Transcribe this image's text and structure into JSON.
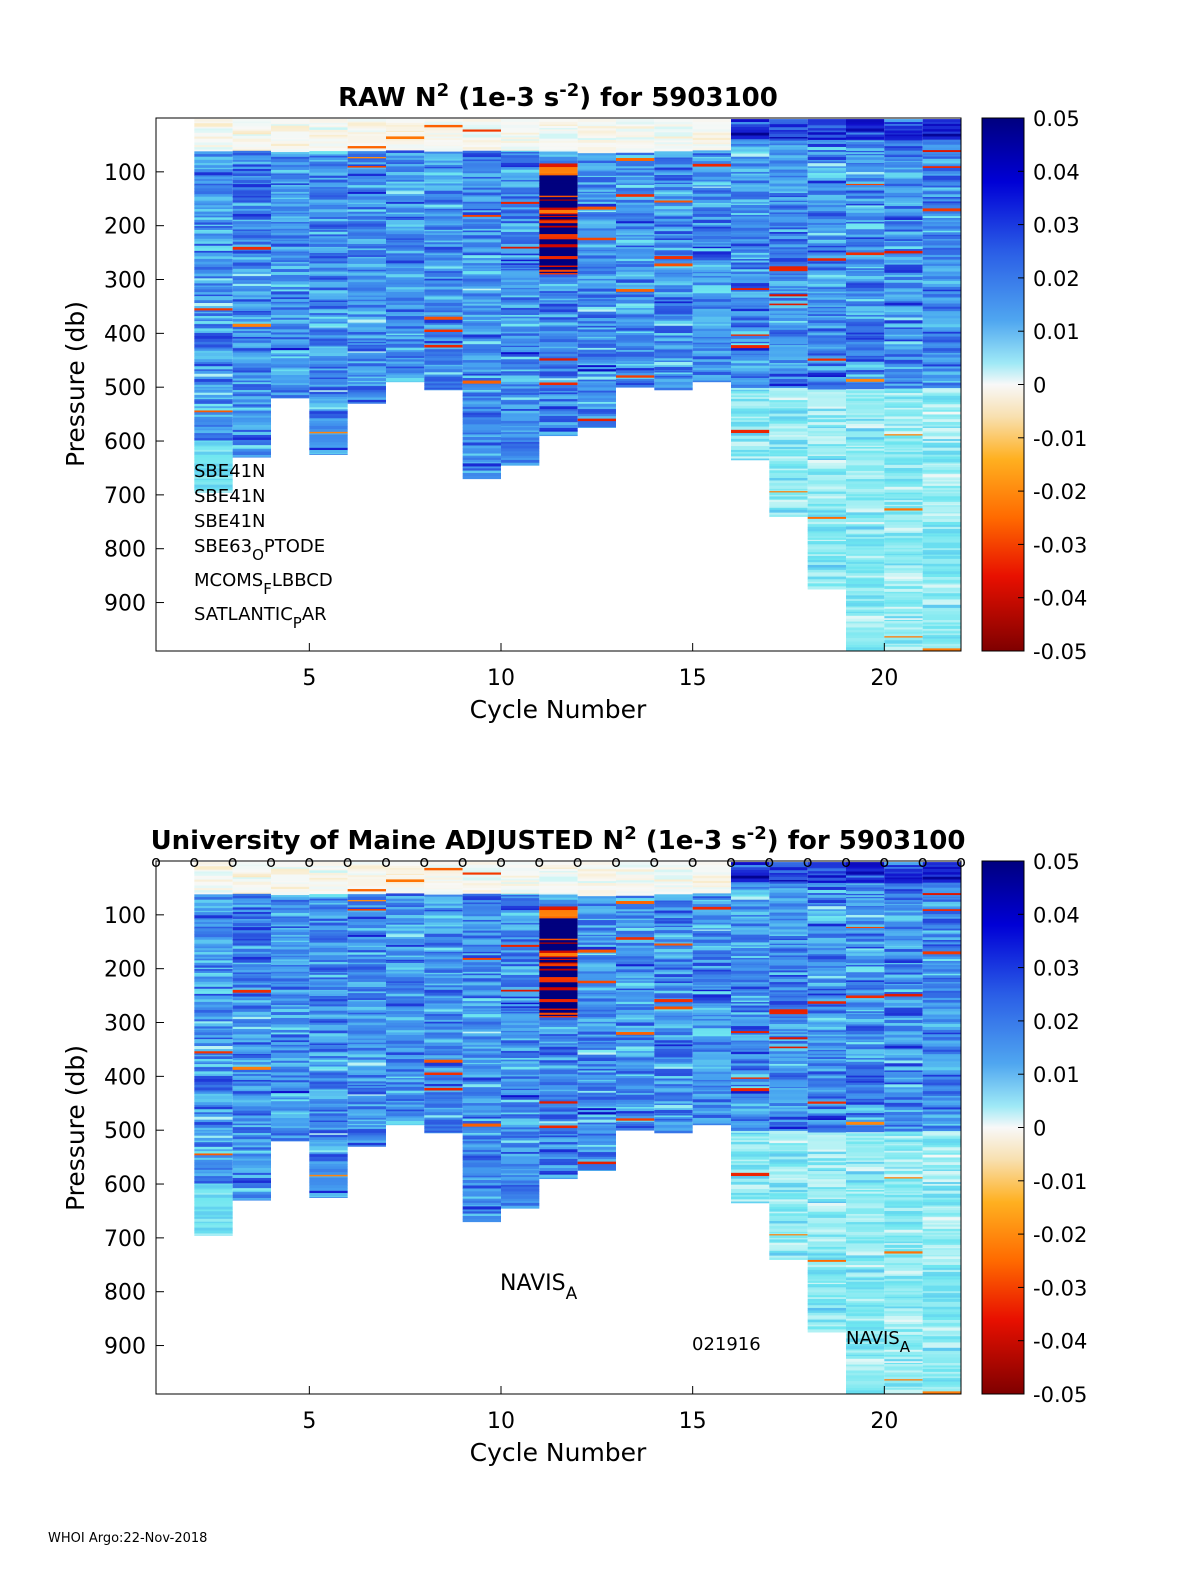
{
  "chart_data": [
    {
      "type": "heatmap",
      "id": "raw",
      "title_prefix": "RAW N",
      "title_sup": "2",
      "title_mid": " (1e-3 s",
      "title_sup2": "-2",
      "title_suffix": ") for 5903100",
      "xlabel": "Cycle Number",
      "ylabel": "Pressure (db)",
      "xlim": [
        1,
        22
      ],
      "ylim": [
        0,
        990
      ],
      "xticks": [
        "5",
        "10",
        "15",
        "20"
      ],
      "yticks": [
        "100",
        "200",
        "300",
        "400",
        "500",
        "600",
        "700",
        "800",
        "900"
      ],
      "colorbar": {
        "limits": [
          -0.05,
          0.05
        ],
        "ticks": [
          "0.05",
          "0.04",
          "0.03",
          "0.02",
          "0.01",
          "0",
          "-0.01",
          "-0.02",
          "-0.03",
          "-0.04",
          "-0.05"
        ]
      },
      "cycles": [
        2,
        3,
        4,
        5,
        6,
        7,
        8,
        9,
        10,
        11,
        12,
        13,
        14,
        15,
        16,
        17,
        18,
        19,
        20,
        21
      ],
      "max_pressure": [
        695,
        630,
        520,
        625,
        530,
        490,
        505,
        670,
        645,
        590,
        575,
        500,
        505,
        490,
        635,
        740,
        875,
        990,
        990,
        990
      ],
      "surface_flags": [],
      "annotations": [
        {
          "text": "SBE41N",
          "sub": "",
          "suffix": ""
        },
        {
          "text": "SBE41N",
          "sub": "",
          "suffix": ""
        },
        {
          "text": "SBE41N",
          "sub": "",
          "suffix": ""
        },
        {
          "text": "SBE63",
          "sub": "O",
          "suffix": "PTODE"
        },
        {
          "text": "MCOMS",
          "sub": "F",
          "suffix": "LBBCD"
        },
        {
          "text": "SATLANTIC",
          "sub": "P",
          "suffix": "AR"
        }
      ]
    },
    {
      "type": "heatmap",
      "id": "adjusted",
      "title_prefix": "University of Maine  ADJUSTED N",
      "title_sup": "2",
      "title_mid": " (1e-3 s",
      "title_sup2": "-2",
      "title_suffix": ") for 5903100",
      "xlabel": "Cycle Number",
      "ylabel": "Pressure (db)",
      "xlim": [
        1,
        22
      ],
      "ylim": [
        0,
        990
      ],
      "xticks": [
        "5",
        "10",
        "15",
        "20"
      ],
      "yticks": [
        "100",
        "200",
        "300",
        "400",
        "500",
        "600",
        "700",
        "800",
        "900"
      ],
      "colorbar": {
        "limits": [
          -0.05,
          0.05
        ],
        "ticks": [
          "0.05",
          "0.04",
          "0.03",
          "0.02",
          "0.01",
          "0",
          "-0.01",
          "-0.02",
          "-0.03",
          "-0.04",
          "-0.05"
        ]
      },
      "cycles": [
        2,
        3,
        4,
        5,
        6,
        7,
        8,
        9,
        10,
        11,
        12,
        13,
        14,
        15,
        16,
        17,
        18,
        19,
        20,
        21
      ],
      "max_pressure": [
        695,
        630,
        520,
        625,
        530,
        490,
        505,
        670,
        645,
        590,
        575,
        500,
        505,
        490,
        635,
        740,
        875,
        990,
        990,
        990
      ],
      "surface_flags": [
        "o",
        "o",
        "o",
        "o",
        "o",
        "o",
        "o",
        "o",
        "o",
        "o",
        "o",
        "o",
        "o",
        "o",
        "o",
        "o",
        "o",
        "o",
        "o",
        "o",
        "o",
        "o"
      ],
      "annotations": [
        {
          "text": "NAVIS",
          "sub": "A",
          "suffix": ""
        },
        {
          "text": "021916",
          "sub": "",
          "suffix": ""
        },
        {
          "text": "NAVIS",
          "sub": "A",
          "suffix": ""
        }
      ]
    }
  ],
  "footer": "WHOI Argo:22-Nov-2018"
}
